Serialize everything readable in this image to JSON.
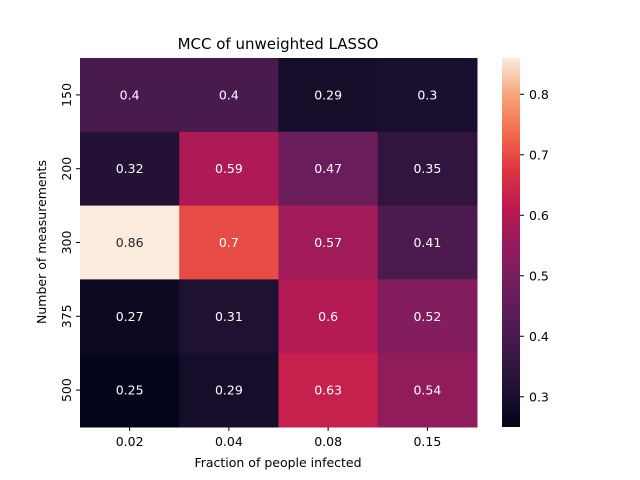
{
  "chart_data": {
    "type": "heatmap",
    "title": "MCC of unweighted LASSO",
    "xlabel": "Fraction of people infected",
    "ylabel": "Number of measurements",
    "x_categories": [
      "0.02",
      "0.04",
      "0.08",
      "0.15"
    ],
    "y_categories": [
      "150",
      "200",
      "300",
      "375",
      "500"
    ],
    "values": [
      [
        0.4,
        0.4,
        0.29,
        0.3
      ],
      [
        0.32,
        0.59,
        0.47,
        0.35
      ],
      [
        0.86,
        0.7,
        0.57,
        0.41
      ],
      [
        0.27,
        0.31,
        0.6,
        0.52
      ],
      [
        0.25,
        0.29,
        0.63,
        0.54
      ]
    ],
    "colorbar": {
      "min": 0.25,
      "max": 0.86,
      "ticks": [
        0.3,
        0.4,
        0.5,
        0.6,
        0.7,
        0.8
      ],
      "tick_labels": [
        "0.3",
        "0.4",
        "0.5",
        "0.6",
        "0.7",
        "0.8"
      ],
      "colormap": "rocket"
    }
  }
}
